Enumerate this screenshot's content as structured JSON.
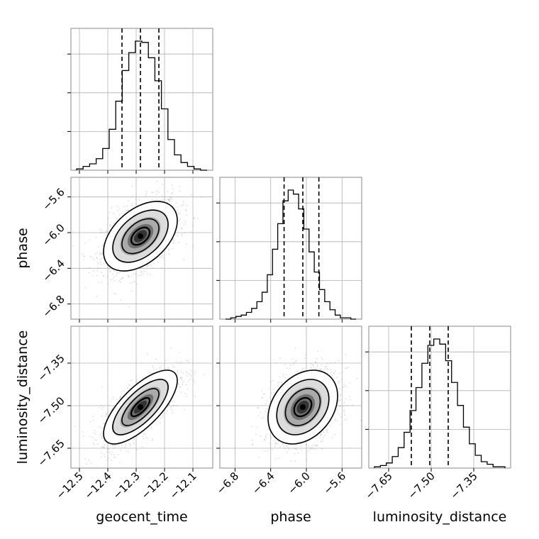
{
  "figure": {
    "parameters": [
      "geocent_time",
      "phase",
      "luminosity_distance"
    ],
    "axis_labels": {
      "geocent_time": "geocent_time",
      "phase": "phase",
      "luminosity_distance": "luminosity_distance"
    },
    "ticks": {
      "geocent_time": {
        "values": [
          -12.5,
          -12.4,
          -12.3,
          -12.2,
          -12.1
        ],
        "labels": [
          "−12.5",
          "−12.4",
          "−12.3",
          "−12.2",
          "−12.1"
        ]
      },
      "phase": {
        "values": [
          -6.8,
          -6.4,
          -6.0,
          -5.6
        ],
        "labels": [
          "−6.8",
          "−6.4",
          "−6.0",
          "−5.6"
        ]
      },
      "luminosity_distance": {
        "values": [
          -7.65,
          -7.5,
          -7.35
        ],
        "labels": [
          "−7.65",
          "−7.50",
          "−7.35"
        ]
      }
    },
    "grid": true,
    "line_color": "#000000",
    "scatter_color": "#9e9e9e",
    "density_color": "#404040",
    "grid_color": "#b0b0b0"
  },
  "chart_data": {
    "type": "corner",
    "parameters": [
      "geocent_time",
      "phase",
      "luminosity_distance"
    ],
    "ranges": {
      "geocent_time": [
        -12.53,
        -12.03
      ],
      "phase": [
        -6.97,
        -5.38
      ],
      "luminosity_distance": [
        -7.72,
        -7.22
      ]
    },
    "quantiles": {
      "geocent_time": [
        -12.35,
        -12.285,
        -12.22
      ],
      "phase": [
        -6.25,
        -6.04,
        -5.86
      ],
      "luminosity_distance": [
        -7.57,
        -7.505,
        -7.44
      ]
    },
    "histograms": {
      "geocent_time": [
        1,
        3,
        5,
        9,
        17,
        32,
        54,
        78,
        92,
        101,
        100,
        88,
        70,
        48,
        24,
        12,
        6,
        3,
        1,
        0
      ],
      "phase": [
        0,
        1,
        2,
        3,
        5,
        8,
        13,
        20,
        33,
        52,
        71,
        88,
        96,
        93,
        82,
        67,
        50,
        35,
        22,
        13,
        7,
        3,
        1,
        1,
        0
      ],
      "luminosity_distance": [
        1,
        2,
        4,
        9,
        16,
        28,
        45,
        63,
        82,
        96,
        101,
        97,
        84,
        67,
        49,
        32,
        19,
        10,
        5,
        3,
        1,
        1
      ]
    },
    "correlations": {
      "phase|geocent_time": 0.45,
      "luminosity_distance|geocent_time": 0.72,
      "luminosity_distance|phase": 0.3
    }
  }
}
